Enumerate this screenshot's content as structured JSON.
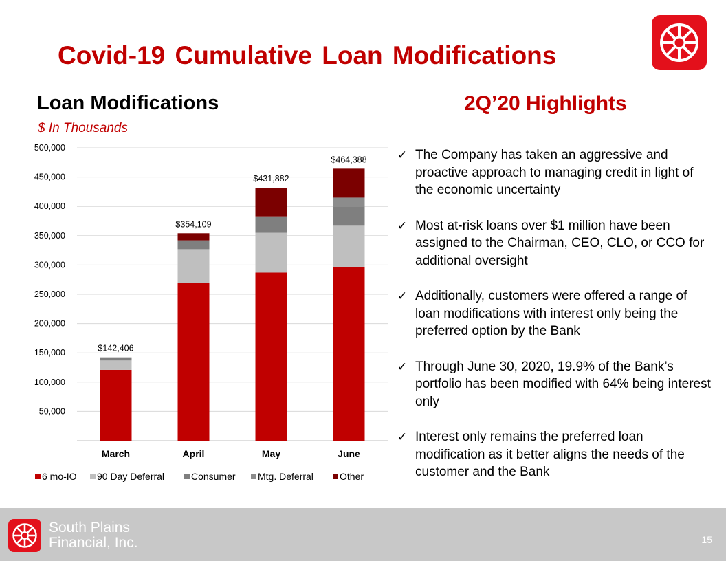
{
  "slide": {
    "title": "Covid-19 Cumulative Loan Modifications",
    "left_heading": "Loan Modifications",
    "units": "$ In Thousands",
    "right_heading": "2Q’20 Highlights",
    "page_number": "15"
  },
  "bullets": [
    "The Company has taken an aggressive and proactive approach to managing credit in light of the economic uncertainty",
    "Most at-risk loans over $1 million have been assigned to the Chairman, CEO, CLO, or CCO for additional oversight",
    "Additionally, customers were offered a range of loan modifications with interest only being the preferred option by the Bank",
    "Through June 30, 2020, 19.9% of the Bank’s portfolio has been modified with 64% being interest only",
    "Interest only remains the preferred loan modification as it better aligns the needs of the customer and the Bank"
  ],
  "footer": {
    "company_line1": "South Plains",
    "company_line2": "Financial, Inc.",
    "logo_icon": "wheel-logo-icon"
  },
  "colors": {
    "brand_red": "#c00000",
    "logo_red": "#e3101b",
    "footer_gray": "#c8c8c8"
  },
  "chart_data": {
    "type": "bar",
    "stacked": true,
    "categories": [
      "March",
      "April",
      "May",
      "June"
    ],
    "series": [
      {
        "name": "6 mo-IO",
        "color": "#c00000",
        "values": [
          121000,
          269000,
          287000,
          297000
        ]
      },
      {
        "name": "90 Day Deferral",
        "color": "#bfbfbf",
        "values": [
          16000,
          58000,
          68000,
          70000
        ]
      },
      {
        "name": "Consumer",
        "color": "#7f7f7f",
        "values": [
          5406,
          15000,
          27000,
          33000
        ]
      },
      {
        "name": "Mtg. Deferral",
        "color": "#8c8c8c",
        "values": [
          0,
          0,
          1000,
          15000
        ]
      },
      {
        "name": "Other",
        "color": "#7b0000",
        "values": [
          0,
          12109,
          48882,
          49388
        ]
      }
    ],
    "totals_labels": [
      "$142,406",
      "$354,109",
      "$431,882",
      "$464,388"
    ],
    "y_ticks": [
      "-",
      "50,000",
      "100,000",
      "150,000",
      "200,000",
      "250,000",
      "300,000",
      "350,000",
      "400,000",
      "450,000",
      "500,000"
    ],
    "ylim": [
      0,
      500000
    ],
    "grid": true,
    "legend_position": "bottom"
  }
}
